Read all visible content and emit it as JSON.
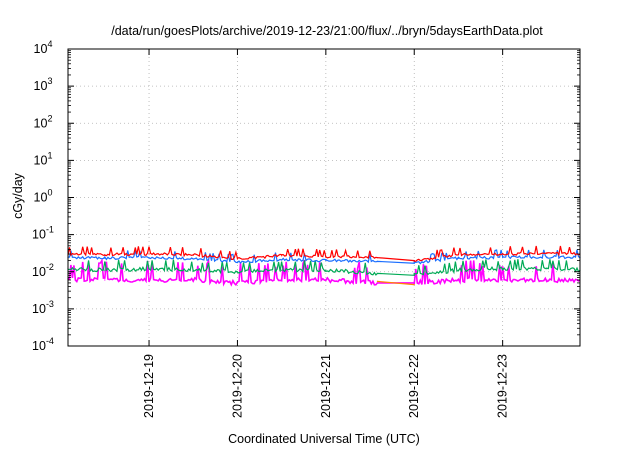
{
  "chart_data": {
    "type": "line",
    "title": "/data/run/goesPlots/archive/2019-12-23/21:00/flux/../bryn/5daysEarthData.plot",
    "xlabel": "Coordinated Universal Time (UTC)",
    "ylabel": "cGy/day",
    "y_scale": "log",
    "ylim_exponent": [
      -4,
      4
    ],
    "y_ticks": [
      {
        "base": "10",
        "exp": "-4"
      },
      {
        "base": "10",
        "exp": "-3"
      },
      {
        "base": "10",
        "exp": "-2"
      },
      {
        "base": "10",
        "exp": "-1"
      },
      {
        "base": "10",
        "exp": "0"
      },
      {
        "base": "10",
        "exp": "1"
      },
      {
        "base": "10",
        "exp": "2"
      },
      {
        "base": "10",
        "exp": "3"
      },
      {
        "base": "10",
        "exp": "4"
      }
    ],
    "xlim": [
      "2019-12-18T02:00",
      "2019-12-23T21:00"
    ],
    "x_ticks": [
      "2019-12-19",
      "2019-12-20",
      "2019-12-21",
      "2019-12-22",
      "2019-12-23"
    ],
    "grid": true,
    "legend": "none",
    "data_gap": [
      "2019-12-21T14:00",
      "2019-12-22T00:00"
    ],
    "series": [
      {
        "color": "#ff0000",
        "x": [
          "2019-12-18T02:00",
          "2019-12-18T12:00",
          "2019-12-19T00:00",
          "2019-12-19T12:00",
          "2019-12-20T00:00",
          "2019-12-20T12:00",
          "2019-12-21T00:00",
          "2019-12-21T14:00",
          "2019-12-22T00:00",
          "2019-12-22T12:00",
          "2019-12-23T00:00",
          "2019-12-23T12:00",
          "2019-12-23T21:00"
        ],
        "y": [
          0.03,
          0.029,
          0.03,
          0.028,
          0.022,
          0.027,
          0.025,
          0.024,
          0.02,
          0.029,
          0.03,
          0.031,
          0.03
        ]
      },
      {
        "color": "#1a6eff",
        "x": [
          "2019-12-18T02:00",
          "2019-12-18T12:00",
          "2019-12-19T00:00",
          "2019-12-19T12:00",
          "2019-12-20T00:00",
          "2019-12-20T12:00",
          "2019-12-21T00:00",
          "2019-12-21T14:00",
          "2019-12-22T00:00",
          "2019-12-22T12:00",
          "2019-12-23T00:00",
          "2019-12-23T12:00",
          "2019-12-23T21:00"
        ],
        "y": [
          0.024,
          0.023,
          0.024,
          0.022,
          0.018,
          0.021,
          0.02,
          0.019,
          0.017,
          0.023,
          0.024,
          0.025,
          0.024
        ]
      },
      {
        "color": "#00aa55",
        "x": [
          "2019-12-18T02:00",
          "2019-12-18T12:00",
          "2019-12-19T00:00",
          "2019-12-19T12:00",
          "2019-12-20T00:00",
          "2019-12-20T12:00",
          "2019-12-21T00:00",
          "2019-12-21T14:00",
          "2019-12-22T00:00",
          "2019-12-22T12:00",
          "2019-12-23T00:00",
          "2019-12-23T12:00",
          "2019-12-23T21:00"
        ],
        "y": [
          0.012,
          0.011,
          0.012,
          0.011,
          0.01,
          0.011,
          0.011,
          0.009,
          0.008,
          0.011,
          0.012,
          0.012,
          0.011
        ]
      },
      {
        "color": "#ff00ff",
        "x": [
          "2019-12-18T02:00",
          "2019-12-18T12:00",
          "2019-12-19T00:00",
          "2019-12-19T12:00",
          "2019-12-20T00:00",
          "2019-12-20T12:00",
          "2019-12-21T00:00",
          "2019-12-21T14:00",
          "2019-12-22T00:00",
          "2019-12-22T12:00",
          "2019-12-23T00:00",
          "2019-12-23T12:00",
          "2019-12-23T21:00"
        ],
        "y": [
          0.006,
          0.006,
          0.006,
          0.006,
          0.005,
          0.006,
          0.006,
          0.005,
          0.005,
          0.006,
          0.006,
          0.006,
          0.006
        ]
      },
      {
        "color": "#ff8800",
        "x": [
          "2019-12-21T14:00",
          "2019-12-22T00:00"
        ],
        "y": [
          0.0055,
          0.0045
        ]
      }
    ]
  }
}
